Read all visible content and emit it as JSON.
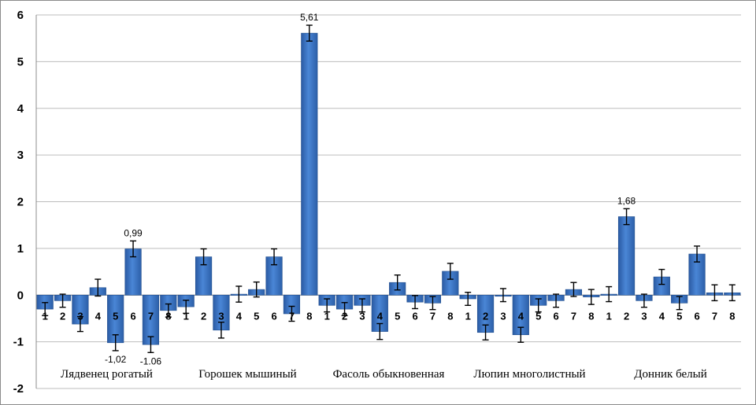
{
  "chart_data": {
    "type": "bar",
    "ylim": [
      -2,
      6
    ],
    "yticks": [
      -2,
      -1,
      0,
      1,
      2,
      3,
      4,
      5,
      6
    ],
    "grid": true,
    "color": "#3d76c4",
    "groups": [
      {
        "name": "Лядвенец рогатый",
        "categories": [
          "1",
          "2",
          "3",
          "4",
          "5",
          "6",
          "7",
          "8"
        ],
        "values": [
          -0.3,
          -0.12,
          -0.62,
          0.16,
          -1.02,
          0.99,
          -1.06,
          -0.33
        ],
        "errors": [
          0.14,
          0.14,
          0.16,
          0.18,
          0.17,
          0.17,
          0.17,
          0.14
        ],
        "data_labels": {
          "4": "-1,02",
          "5": "0,99",
          "6": "-1.06"
        }
      },
      {
        "name": "Горошек мышиный",
        "categories": [
          "1",
          "2",
          "3",
          "4",
          "5",
          "6",
          "7",
          "8"
        ],
        "values": [
          -0.25,
          0.82,
          -0.75,
          0.02,
          0.12,
          0.82,
          -0.4,
          5.61
        ],
        "errors": [
          0.14,
          0.17,
          0.17,
          0.17,
          0.16,
          0.17,
          0.16,
          0.17
        ],
        "data_labels": {
          "7": "5,61"
        }
      },
      {
        "name": "Фасоль обыкновенная",
        "categories": [
          "1",
          "2",
          "3",
          "4",
          "5",
          "6",
          "7",
          "8"
        ],
        "values": [
          -0.22,
          -0.3,
          -0.22,
          -0.78,
          0.27,
          -0.15,
          -0.17,
          0.51
        ],
        "errors": [
          0.14,
          0.14,
          0.14,
          0.17,
          0.16,
          0.14,
          0.14,
          0.17
        ],
        "data_labels": {}
      },
      {
        "name": "Люпин многолистный",
        "categories": [
          "1",
          "2",
          "3",
          "4",
          "5",
          "6",
          "7",
          "8"
        ],
        "values": [
          -0.08,
          -0.8,
          0.0,
          -0.85,
          -0.22,
          -0.12,
          0.12,
          -0.04
        ],
        "errors": [
          0.14,
          0.16,
          0.14,
          0.16,
          0.14,
          0.14,
          0.15,
          0.16
        ],
        "data_labels": {}
      },
      {
        "name": "Донник белый",
        "categories": [
          "1",
          "2",
          "3",
          "4",
          "5",
          "6",
          "7",
          "8"
        ],
        "values": [
          0.02,
          1.68,
          -0.12,
          0.39,
          -0.17,
          0.88,
          0.05,
          0.05
        ],
        "errors": [
          0.16,
          0.17,
          0.14,
          0.16,
          0.14,
          0.17,
          0.17,
          0.17
        ],
        "data_labels": {
          "1": "1,68"
        }
      }
    ]
  }
}
